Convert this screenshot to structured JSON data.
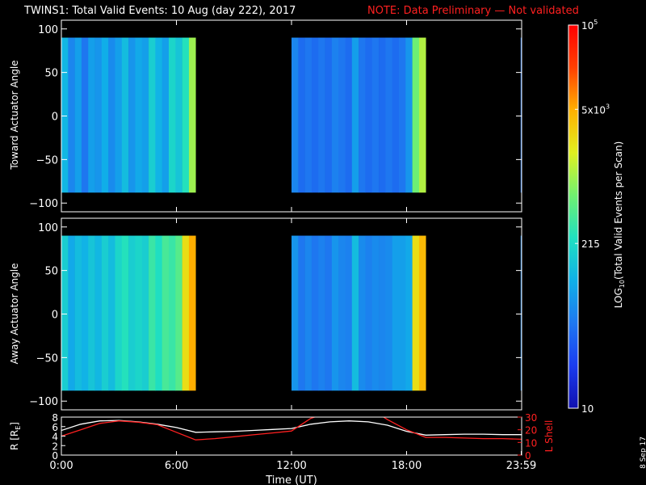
{
  "title": {
    "main": "TWINS1: Total Valid Events: 10 Aug (day 222), 2017",
    "note": "NOTE: Data Preliminary — Not validated",
    "note_color": "#ff2020"
  },
  "date_stamp": "8 Sep 17",
  "chart_data": [
    {
      "type": "heatmap",
      "ylabel": "Toward Actuator Angle",
      "ylim": [
        -110,
        110
      ],
      "yticks": [
        "100",
        "50",
        "0",
        "−50",
        "−100"
      ],
      "ytick_values": [
        100,
        50,
        0,
        -50,
        -100
      ],
      "xlim": [
        0,
        24
      ],
      "data_angle_range": [
        -88,
        90
      ],
      "blocks": [
        {
          "x_start_hour": 0.0,
          "x_end_hour": 7.0,
          "levels": [
            0.35,
            0.25,
            0.3,
            0.22,
            0.3,
            0.28,
            0.33,
            0.26,
            0.3,
            0.36,
            0.28,
            0.32,
            0.3,
            0.4,
            0.34,
            0.3,
            0.42,
            0.38,
            0.45,
            0.6
          ]
        },
        {
          "x_start_hour": 12.0,
          "x_end_hour": 19.0,
          "levels": [
            0.25,
            0.2,
            0.22,
            0.2,
            0.22,
            0.2,
            0.24,
            0.22,
            0.2,
            0.3,
            0.22,
            0.2,
            0.22,
            0.2,
            0.22,
            0.2,
            0.22,
            0.28,
            0.55,
            0.62
          ]
        },
        {
          "x_start_hour": 23.95,
          "x_end_hour": 24.0,
          "levels": [
            0.22
          ]
        }
      ]
    },
    {
      "type": "heatmap",
      "ylabel": "Away Actuator Angle",
      "ylim": [
        -110,
        110
      ],
      "yticks": [
        "100",
        "50",
        "0",
        "−50",
        "−100"
      ],
      "ytick_values": [
        100,
        50,
        0,
        -50,
        -100
      ],
      "xlim": [
        0,
        24
      ],
      "data_angle_range": [
        -88,
        90
      ],
      "blocks": [
        {
          "x_start_hour": 0.0,
          "x_end_hour": 7.0,
          "levels": [
            0.4,
            0.32,
            0.36,
            0.34,
            0.38,
            0.35,
            0.4,
            0.36,
            0.42,
            0.45,
            0.4,
            0.42,
            0.4,
            0.48,
            0.44,
            0.5,
            0.48,
            0.52,
            0.7,
            0.78
          ]
        },
        {
          "x_start_hour": 12.0,
          "x_end_hour": 19.0,
          "levels": [
            0.28,
            0.22,
            0.25,
            0.22,
            0.24,
            0.22,
            0.28,
            0.25,
            0.24,
            0.36,
            0.26,
            0.24,
            0.26,
            0.25,
            0.26,
            0.3,
            0.3,
            0.32,
            0.7,
            0.76
          ]
        },
        {
          "x_start_hour": 23.95,
          "x_end_hour": 24.0,
          "levels": [
            0.25
          ]
        }
      ]
    },
    {
      "type": "line",
      "ylabel": "R [R",
      "ylabel_sub": "E",
      "ylabel_end": "]",
      "ylim": [
        0,
        8
      ],
      "yticks": [
        "8",
        "6",
        "4",
        "2",
        "0"
      ],
      "ytick_values": [
        8,
        6,
        4,
        2,
        0
      ],
      "y2label": "L Shell",
      "y2lim": [
        0,
        30
      ],
      "y2ticks": [
        "30",
        "20",
        "10",
        "0"
      ],
      "y2tick_values": [
        30,
        20,
        10,
        0
      ],
      "xlabel": "Time (UT)",
      "xticks": [
        "0:00",
        "6:00",
        "12:00",
        "18:00",
        "23:59"
      ],
      "xtick_values": [
        0,
        6,
        12,
        18,
        23.98
      ],
      "series": [
        {
          "color": "#ffffff",
          "axis": "left",
          "x": [
            0,
            1,
            2,
            3,
            4,
            5,
            6,
            7,
            8,
            9,
            10,
            11,
            12,
            13,
            14,
            15,
            16,
            17,
            18,
            19,
            20,
            21,
            22,
            23,
            24
          ],
          "y": [
            5.2,
            6.5,
            7.2,
            7.3,
            7.0,
            6.5,
            5.8,
            4.8,
            4.9,
            5.0,
            5.2,
            5.4,
            5.6,
            6.5,
            7.0,
            7.2,
            7.0,
            6.3,
            5.0,
            4.2,
            4.3,
            4.4,
            4.4,
            4.3,
            4.3
          ]
        },
        {
          "color": "#ff2020",
          "axis": "right",
          "x": [
            0,
            1,
            2,
            3,
            4,
            5,
            6,
            7,
            8,
            9,
            10,
            11,
            12,
            12.5,
            13,
            13.4,
            16.7,
            17,
            18,
            19,
            20,
            21,
            22,
            23,
            24
          ],
          "y": [
            15,
            20,
            25,
            27,
            26,
            24,
            18,
            12,
            13,
            14.5,
            16,
            17.5,
            19,
            24,
            29,
            31,
            31,
            28,
            20,
            14,
            14,
            13.5,
            13,
            13,
            12.5
          ]
        }
      ]
    }
  ],
  "colorbar": {
    "label": "LOG10(Total Valid Events per Scan)",
    "label_pre": "LOG",
    "label_sub": "10",
    "label_post": "(Total Valid Events per Scan)",
    "ticks": [
      {
        "text": "10",
        "level": 0.0
      },
      {
        "text": "215",
        "level": 0.43
      },
      {
        "text": "5x10",
        "sup": "3",
        "level": 0.78
      },
      {
        "text": "10",
        "sup": "5",
        "level": 1.0
      }
    ],
    "colors": [
      "#1010b0",
      "#1a3cf0",
      "#1e78f0",
      "#10b0e8",
      "#20e0c0",
      "#70f070",
      "#e0f020",
      "#ffb000",
      "#ff4000",
      "#ff0000"
    ]
  }
}
